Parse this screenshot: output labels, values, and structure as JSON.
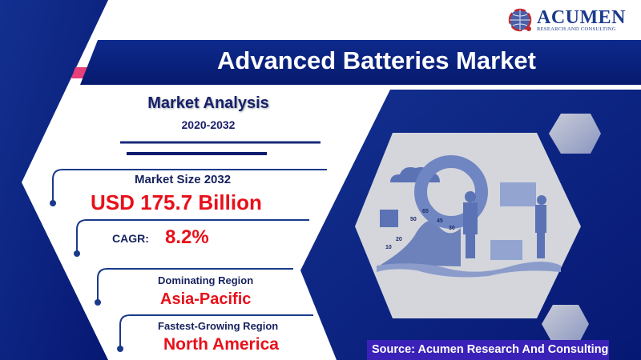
{
  "logo": {
    "name": "ACUMEN",
    "tagline": "RESEARCH AND CONSULTING"
  },
  "title": "Advanced Batteries Market",
  "analysis": {
    "heading": "Market Analysis",
    "period": "2020-2032"
  },
  "stats": {
    "market_size_label": "Market Size 2032",
    "market_size_value": "USD 175.7 Billion",
    "cagr_label": "CAGR:",
    "cagr_value": "8.2%",
    "dominating_label": "Dominating Region",
    "dominating_value": "Asia-Pacific",
    "fastest_label": "Fastest-Growing Region",
    "fastest_value": "North America"
  },
  "illustration": {
    "chart_labels": [
      "10",
      "20",
      "50",
      "65",
      "45",
      "30"
    ]
  },
  "source": "Source: Acumen Research And Consulting",
  "colors": {
    "navy": "#0a1f7a",
    "accent_red": "#e8101a",
    "pink": "#e8407a",
    "source_bar": "#3a22b8"
  }
}
